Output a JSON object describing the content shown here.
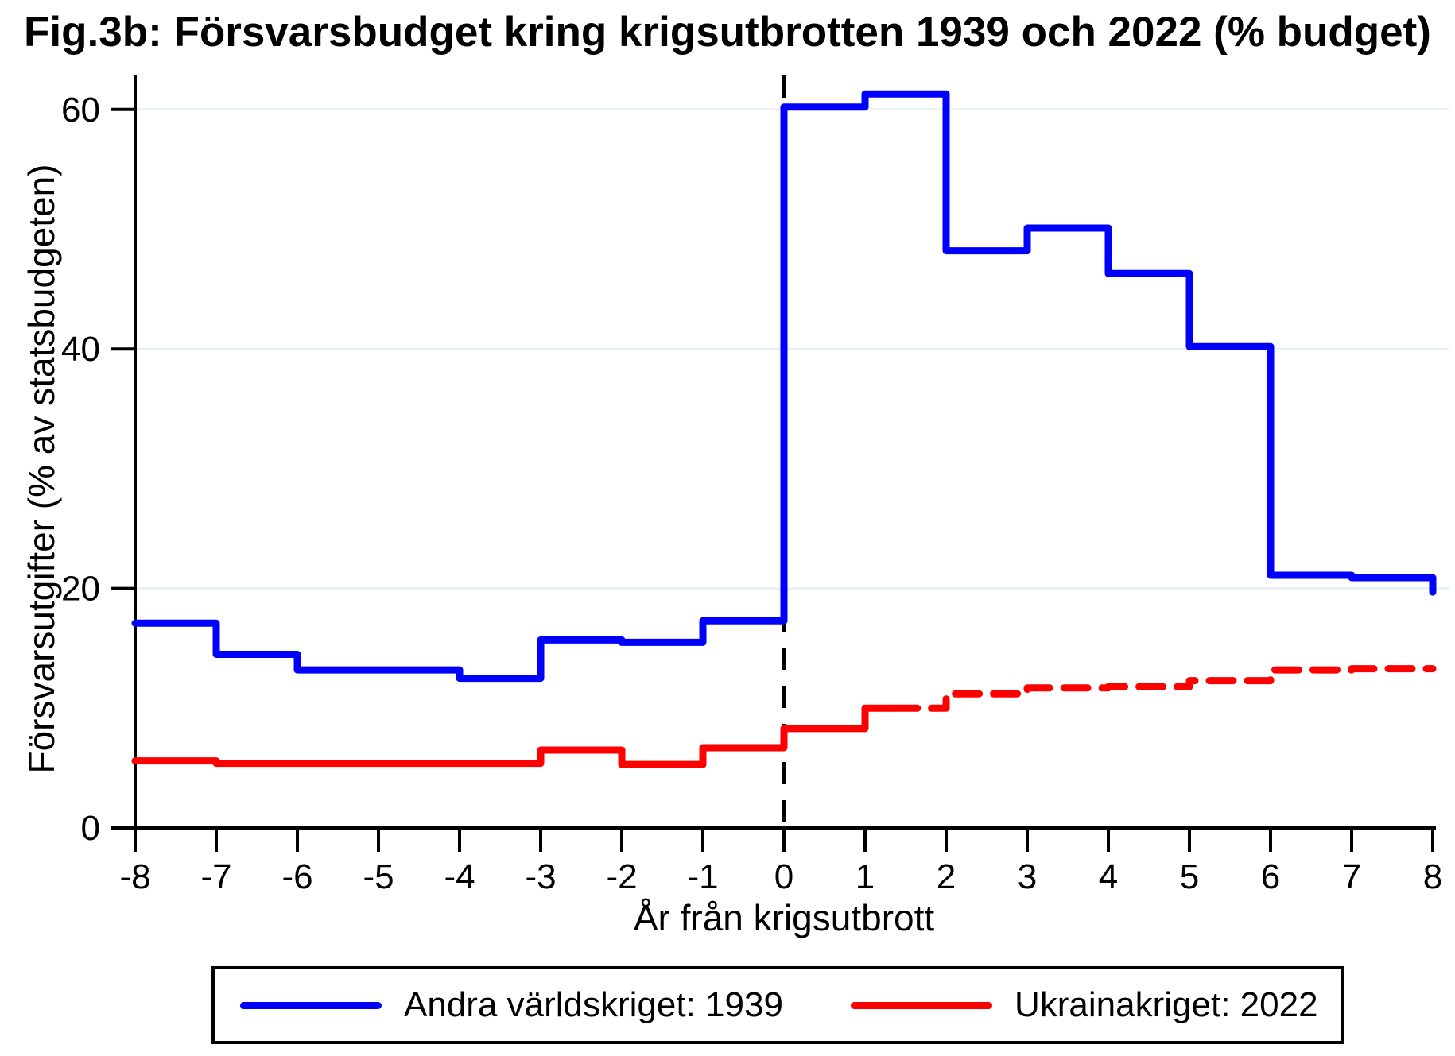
{
  "title": "Fig.3b: Försvarsbudget kring krigsutbrotten 1939 och 2022 (% budget)",
  "axes": {
    "xlabel": "År från krigsutbrott",
    "ylabel": "Försvarsutgifter (% av statsbudgeten)"
  },
  "colors": {
    "series_blue": "#0000ff",
    "series_red": "#ff0000",
    "gridline": "#e9f1f2",
    "axis": "#000000",
    "event_line": "#000000",
    "background": "#ffffff"
  },
  "chart_data": {
    "type": "line",
    "subtype": "step",
    "title": "Fig.3b: Försvarsbudget kring krigsutbrotten 1939 och 2022 (% budget)",
    "xlabel": "År från krigsutbrott",
    "ylabel": "Försvarsutgifter (% av statsbudgeten)",
    "x_ticks": [
      -8,
      -7,
      -6,
      -5,
      -4,
      -3,
      -2,
      -1,
      0,
      1,
      2,
      3,
      4,
      5,
      6,
      7,
      8
    ],
    "y_ticks": [
      0,
      20,
      40,
      60
    ],
    "xlim": [
      -8,
      8
    ],
    "ylim": [
      0,
      62.8
    ],
    "grid": "horizontal gridlines at 20/40/60",
    "legend_position": "bottom",
    "event_line_x": 0,
    "step_years": [
      -8,
      -7,
      -6,
      -5,
      -4,
      -3,
      -2,
      -1,
      0,
      1,
      2,
      3,
      4,
      5,
      6,
      7
    ],
    "series": [
      {
        "name": "Andra världskriget: 1939",
        "color": "#0000ff",
        "line": "solid",
        "values": [
          17.1,
          14.5,
          13.2,
          13.2,
          12.5,
          15.7,
          15.5,
          17.3,
          60.2,
          61.3,
          48.2,
          50.1,
          46.3,
          40.2,
          21.1,
          20.9
        ],
        "end_value": 19.7
      },
      {
        "name": "Ukrainakriget: 2022",
        "color": "#ff0000",
        "line": "solid before outbreak, dashed projection after",
        "dash_from_x": 1.35,
        "values": [
          5.6,
          5.4,
          5.4,
          5.4,
          5.4,
          6.5,
          5.3,
          6.7,
          8.3,
          10.0,
          11.2,
          11.7,
          11.8,
          12.3,
          13.2,
          13.3
        ],
        "end_value": 13.3
      }
    ]
  }
}
